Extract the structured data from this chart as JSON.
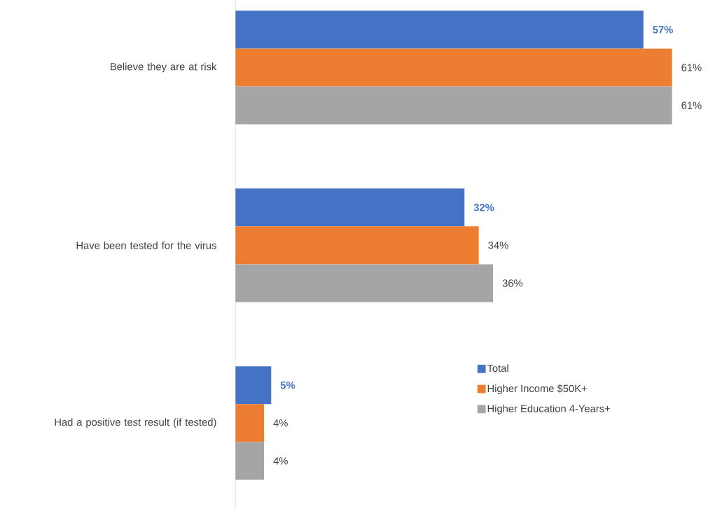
{
  "chart_data": {
    "type": "bar",
    "orientation": "horizontal",
    "categories": [
      "Believe they are at risk",
      "Have been tested for the virus",
      "Had a positive test result (if tested)"
    ],
    "series": [
      {
        "name": "Total",
        "color": "#4472c4",
        "values": [
          57,
          32,
          5
        ],
        "value_labels": [
          "57%",
          "32%",
          "5%"
        ]
      },
      {
        "name": "Higher Income $50K+",
        "color": "#ed7d31",
        "values": [
          61,
          34,
          4
        ],
        "value_labels": [
          "61%",
          "34%",
          "4%"
        ]
      },
      {
        "name": "Higher Education 4-Years+",
        "color": "#a5a5a5",
        "values": [
          61,
          36,
          4
        ],
        "value_labels": [
          "61%",
          "36%",
          "4%"
        ]
      }
    ],
    "legend": "bottom right"
  }
}
